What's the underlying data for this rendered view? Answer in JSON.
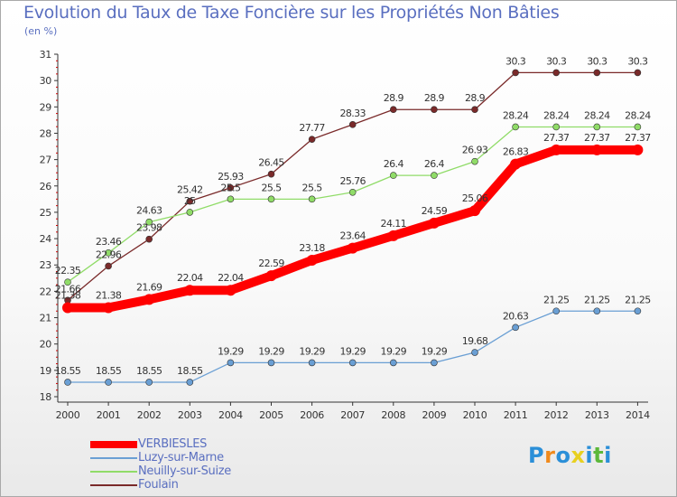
{
  "chart_data": {
    "type": "line",
    "title": "Evolution du Taux de Taxe Foncière sur les Propriétés Non Bâties",
    "subtitle": "(en %)",
    "x": [
      "2000",
      "2001",
      "2002",
      "2003",
      "2004",
      "2005",
      "2006",
      "2007",
      "2008",
      "2009",
      "2010",
      "2011",
      "2012",
      "2013",
      "2014"
    ],
    "ylim": [
      18,
      31
    ],
    "yticks": [
      "18",
      "19",
      "20",
      "21",
      "22",
      "23",
      "24",
      "25",
      "26",
      "27",
      "28",
      "29",
      "30",
      "31"
    ],
    "grid": false,
    "legend_position": "bottom-left",
    "series": [
      {
        "name": "VERBIESLES",
        "color": "#ff0000",
        "values": [
          21.38,
          21.38,
          21.69,
          22.04,
          22.04,
          22.59,
          23.18,
          23.64,
          24.11,
          24.59,
          25.06,
          26.83,
          27.37,
          27.37,
          27.37
        ],
        "labels": [
          "21.38",
          "21.38",
          "21.69",
          "22.04",
          "22.04",
          "22.59",
          "23.18",
          "23.64",
          "24.11",
          "24.59",
          "25.06",
          "26.83",
          "27.37",
          "27.37",
          "27.37"
        ]
      },
      {
        "name": "Luzy-sur-Marne",
        "color": "#6a9fd4",
        "values": [
          18.55,
          18.55,
          18.55,
          18.55,
          19.29,
          19.29,
          19.29,
          19.29,
          19.29,
          19.29,
          19.68,
          20.63,
          21.25,
          21.25,
          21.25
        ],
        "labels": [
          "18.55",
          "18.55",
          "18.55",
          "18.55",
          "19.29",
          "19.29",
          "19.29",
          "19.29",
          "19.29",
          "19.29",
          "19.68",
          "20.63",
          "21.25",
          "21.25",
          "21.25"
        ]
      },
      {
        "name": "Neuilly-sur-Suize",
        "color": "#90dc68",
        "values": [
          22.35,
          23.46,
          24.63,
          25,
          25.5,
          25.5,
          25.5,
          25.76,
          26.4,
          26.4,
          26.93,
          28.24,
          28.24,
          28.24,
          28.24
        ],
        "labels": [
          "22.35",
          "23.46",
          "24.63",
          "25",
          "25.5",
          "25.5",
          "25.5",
          "25.76",
          "26.4",
          "26.4",
          "26.93",
          "28.24",
          "28.24",
          "28.24",
          "28.24"
        ]
      },
      {
        "name": "Foulain",
        "color": "#7a2a2a",
        "values": [
          21.66,
          22.96,
          23.98,
          25.42,
          25.93,
          26.45,
          27.77,
          28.33,
          28.9,
          28.9,
          28.9,
          30.3,
          30.3,
          30.3,
          30.3
        ],
        "labels": [
          "21.66",
          "22.96",
          "23.98",
          "25.42",
          "25.93",
          "26.45",
          "27.77",
          "28.33",
          "28.9",
          "28.9",
          "28.9",
          "30.3",
          "30.3",
          "30.3",
          "30.3"
        ]
      }
    ]
  },
  "logo": {
    "letters": [
      "P",
      "r",
      "o",
      "x",
      "i",
      "t",
      "i"
    ],
    "colors": [
      "#2b8fd8",
      "#f08a1c",
      "#2b8fd8",
      "#e8d020",
      "#2b8fd8",
      "#5cb83a",
      "#2b8fd8"
    ]
  }
}
